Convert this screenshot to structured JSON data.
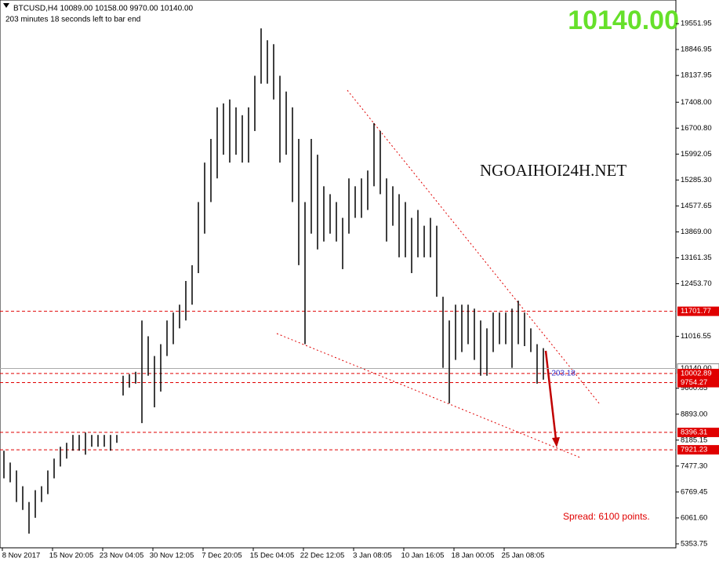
{
  "chart_data": {
    "type": "range_bar",
    "header": "BTCUSD,H4  10089.00 10158.00 9970.00 10140.00",
    "countdown": "203 minutes 18 seconds left to bar end",
    "watermark": "NGOAIHOI24H.NET",
    "current_price": {
      "value": 10140,
      "label": "10140.00"
    },
    "distance_label": "-203.18",
    "spread_label": "Spread: 6100 points.",
    "color": "#000000",
    "level_color": "#e00000",
    "levels": [
      11701.77,
      10002.89,
      9754.27,
      8396.31,
      7921.23
    ],
    "x_labels": [
      "8 Nov 2017",
      "15 Nov 20:05",
      "23 Nov 04:05",
      "30 Nov 12:05",
      "7 Dec 20:05",
      "15 Dec 04:05",
      "22 Dec 12:05",
      "3 Jan 08:05",
      "10 Jan 16:05",
      "18 Jan 00:05",
      "25 Jan 08:05"
    ],
    "ylim": [
      5246,
      20198
    ],
    "yticks": [
      19551.95,
      18846.95,
      18137.95,
      {
        "value": 17408,
        "label": "17408.00"
      },
      {
        "value": 16700.8,
        "label": "16700.80"
      },
      15992.05,
      {
        "value": 15285.3,
        "label": "15285.30"
      },
      14577.65,
      {
        "value": 13869,
        "label": "13869.00"
      },
      13161.35,
      {
        "value": 12453.7,
        "label": "12453.70"
      },
      11016.55,
      {
        "value": 9600.85,
        "label": "9600.85"
      },
      {
        "value": 8893,
        "label": "8893.00"
      },
      8185.15,
      {
        "value": 7477.3,
        "label": "7477.30"
      },
      6769.45,
      {
        "value": 6061.6,
        "label": "6061.60"
      },
      5353.75
    ],
    "highs": [
      7896,
      7573,
      7357,
      6927,
      6496,
      6819,
      6927,
      7357,
      7681,
      8004,
      8112,
      8327,
      8327,
      8392,
      8327,
      8327,
      8327,
      8327,
      8327,
      9943,
      9986,
      10050,
      11451,
      11020,
      10481,
      10804,
      11451,
      11667,
      11882,
      12529,
      12959,
      14683,
      15760,
      16406,
      17268,
      17376,
      17483,
      17268,
      17053,
      17268,
      18130,
      19423,
      19100,
      18992,
      18130,
      17699,
      17268,
      16406,
      14683,
      16406,
      15975,
      15114,
      14898,
      14683,
      14252,
      15329,
      15114,
      15329,
      15544,
      16837,
      16622,
      15329,
      15114,
      14898,
      14683,
      14252,
      14467,
      14037,
      14252,
      14037,
      12098,
      11451,
      11882,
      11882,
      11882,
      11774,
      11451,
      11236,
      11667,
      11667,
      11667,
      11774,
      11990,
      11667,
      11236,
      10804,
      10696
    ],
    "lows": [
      7142,
      7034,
      6496,
      6280,
      5634,
      6065,
      6496,
      6711,
      7142,
      7465,
      7681,
      7896,
      7896,
      7788,
      8004,
      8004,
      8004,
      7896,
      8112,
      9404,
      9619,
      9727,
      8650,
      9943,
      9081,
      9511,
      10481,
      10804,
      11236,
      11451,
      11882,
      12744,
      13821,
      14683,
      15329,
      15975,
      15760,
      15975,
      15760,
      15760,
      16622,
      17914,
      17914,
      17483,
      15760,
      15975,
      14683,
      12959,
      10804,
      13821,
      13390,
      13606,
      13821,
      13606,
      12852,
      13821,
      14252,
      14252,
      14467,
      15114,
      14898,
      13606,
      14037,
      13175,
      13175,
      12744,
      13175,
      13175,
      13175,
      12098,
      10159,
      9189,
      10374,
      10589,
      10804,
      10374,
      9943,
      9943,
      10589,
      10804,
      10804,
      10159,
      10804,
      10751,
      10589,
      9727,
      9835
    ]
  }
}
